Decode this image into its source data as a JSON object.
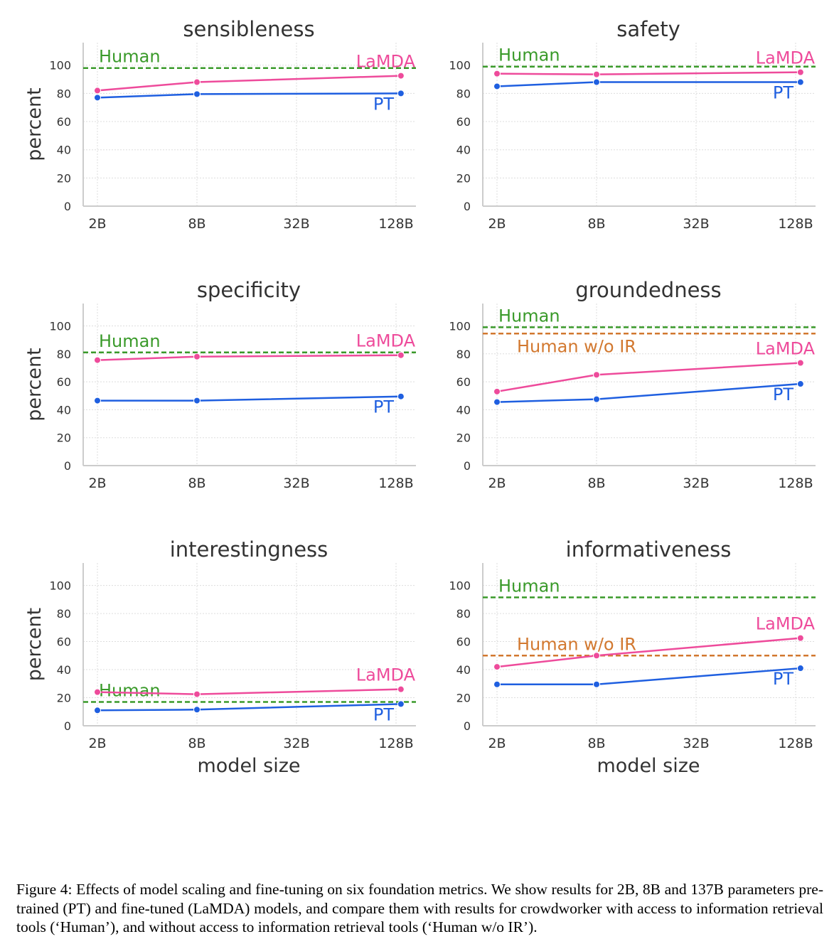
{
  "chart_data": [
    {
      "type": "line",
      "title": "sensibleness",
      "ylabel": "percent",
      "xlabel": "",
      "x": [
        "2B",
        "8B",
        "137B"
      ],
      "x_params_billion": [
        2,
        8,
        137
      ],
      "xscale": "log2",
      "xticks": [
        "2B",
        "8B",
        "32B",
        "128B"
      ],
      "yticks": [
        0,
        20,
        40,
        60,
        80,
        100
      ],
      "ylim": [
        0,
        116
      ],
      "grid": true,
      "series": [
        {
          "name": "LaMDA",
          "values": [
            82,
            88,
            92.5
          ]
        },
        {
          "name": "PT",
          "values": [
            77,
            79.5,
            80
          ]
        }
      ],
      "reference_lines": [
        {
          "name": "Human",
          "value": 98
        }
      ]
    },
    {
      "type": "line",
      "title": "safety",
      "ylabel": "",
      "xlabel": "",
      "x": [
        "2B",
        "8B",
        "137B"
      ],
      "x_params_billion": [
        2,
        8,
        137
      ],
      "xscale": "log2",
      "xticks": [
        "2B",
        "8B",
        "32B",
        "128B"
      ],
      "yticks": [
        0,
        20,
        40,
        60,
        80,
        100
      ],
      "ylim": [
        0,
        116
      ],
      "grid": true,
      "series": [
        {
          "name": "LaMDA",
          "values": [
            94,
            93.5,
            95
          ]
        },
        {
          "name": "PT",
          "values": [
            85,
            88,
            88
          ]
        }
      ],
      "reference_lines": [
        {
          "name": "Human",
          "value": 99
        }
      ]
    },
    {
      "type": "line",
      "title": "specificity",
      "ylabel": "percent",
      "xlabel": "",
      "x": [
        "2B",
        "8B",
        "137B"
      ],
      "x_params_billion": [
        2,
        8,
        137
      ],
      "xscale": "log2",
      "xticks": [
        "2B",
        "8B",
        "32B",
        "128B"
      ],
      "yticks": [
        0,
        20,
        40,
        60,
        80,
        100
      ],
      "ylim": [
        0,
        116
      ],
      "grid": true,
      "series": [
        {
          "name": "LaMDA",
          "values": [
            75.5,
            78,
            79
          ]
        },
        {
          "name": "PT",
          "values": [
            46.5,
            46.5,
            49.5
          ]
        }
      ],
      "reference_lines": [
        {
          "name": "Human",
          "value": 81
        }
      ]
    },
    {
      "type": "line",
      "title": "groundedness",
      "ylabel": "",
      "xlabel": "",
      "x": [
        "2B",
        "8B",
        "137B"
      ],
      "x_params_billion": [
        2,
        8,
        137
      ],
      "xscale": "log2",
      "xticks": [
        "2B",
        "8B",
        "32B",
        "128B"
      ],
      "yticks": [
        0,
        20,
        40,
        60,
        80,
        100
      ],
      "ylim": [
        0,
        116
      ],
      "grid": true,
      "series": [
        {
          "name": "LaMDA",
          "values": [
            53,
            65,
            73.5
          ]
        },
        {
          "name": "PT",
          "values": [
            45.5,
            47.5,
            58.5
          ]
        }
      ],
      "reference_lines": [
        {
          "name": "Human",
          "value": 99
        },
        {
          "name": "Human w/o IR",
          "value": 94.5
        }
      ]
    },
    {
      "type": "line",
      "title": "interestingness",
      "ylabel": "percent",
      "xlabel": "model size",
      "x": [
        "2B",
        "8B",
        "137B"
      ],
      "x_params_billion": [
        2,
        8,
        137
      ],
      "xscale": "log2",
      "xticks": [
        "2B",
        "8B",
        "32B",
        "128B"
      ],
      "yticks": [
        0,
        20,
        40,
        60,
        80,
        100
      ],
      "ylim": [
        0,
        116
      ],
      "grid": true,
      "series": [
        {
          "name": "LaMDA",
          "values": [
            24,
            22.5,
            26
          ]
        },
        {
          "name": "PT",
          "values": [
            11,
            11.5,
            15.5
          ]
        }
      ],
      "reference_lines": [
        {
          "name": "Human",
          "value": 17
        }
      ]
    },
    {
      "type": "line",
      "title": "informativeness",
      "ylabel": "",
      "xlabel": "model size",
      "x": [
        "2B",
        "8B",
        "137B"
      ],
      "x_params_billion": [
        2,
        8,
        137
      ],
      "xscale": "log2",
      "xticks": [
        "2B",
        "8B",
        "32B",
        "128B"
      ],
      "yticks": [
        0,
        20,
        40,
        60,
        80,
        100
      ],
      "ylim": [
        0,
        116
      ],
      "grid": true,
      "series": [
        {
          "name": "LaMDA",
          "values": [
            42,
            50,
            62.5
          ]
        },
        {
          "name": "PT",
          "values": [
            29.5,
            29.5,
            41
          ]
        }
      ],
      "reference_lines": [
        {
          "name": "Human",
          "value": 91.5
        },
        {
          "name": "Human w/o IR",
          "value": 50
        }
      ]
    }
  ],
  "colors": {
    "LaMDA": "#ee4b9b",
    "PT": "#1f5fe0",
    "Human": "#3a9a2a",
    "Human w/o IR": "#d2782f",
    "axis": "#cccccc",
    "grid": "#dddddd",
    "tick_text": "#333333"
  },
  "caption": "Figure 4: Effects of model scaling and fine-tuning on six foundation metrics. We show results for 2B, 8B and 137B parameters pre-trained (PT) and fine-tuned (LaMDA) models, and compare them with results for crowdworker with access to information retrieval tools (‘Human’), and without access to information retrieval tools (‘Human w/o IR’)."
}
